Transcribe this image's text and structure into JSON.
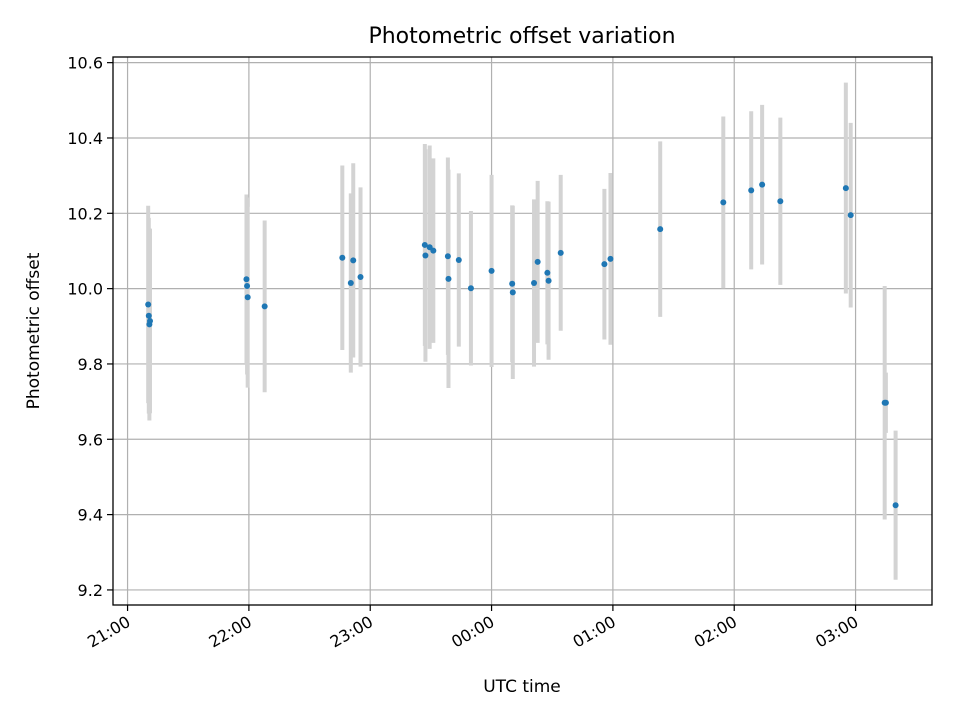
{
  "chart_data": {
    "type": "scatter",
    "title": "Photometric offset variation",
    "xlabel": "UTC time",
    "ylabel": "Photometric offset",
    "x_unit": "UTC clock time (hours, times after midnight expressed as 24+)",
    "xlim": [
      20.88,
      27.63
    ],
    "ylim": [
      9.16,
      10.615
    ],
    "grid": true,
    "x_ticks": [
      {
        "value": 21,
        "label": "21:00"
      },
      {
        "value": 22,
        "label": "22:00"
      },
      {
        "value": 23,
        "label": "23:00"
      },
      {
        "value": 24,
        "label": "00:00"
      },
      {
        "value": 25,
        "label": "01:00"
      },
      {
        "value": 26,
        "label": "02:00"
      },
      {
        "value": 27,
        "label": "03:00"
      }
    ],
    "y_ticks": [
      {
        "value": 9.2,
        "label": "9.2"
      },
      {
        "value": 9.4,
        "label": "9.4"
      },
      {
        "value": 9.6,
        "label": "9.6"
      },
      {
        "value": 9.8,
        "label": "9.8"
      },
      {
        "value": 10.0,
        "label": "10.0"
      },
      {
        "value": 10.2,
        "label": "10.2"
      },
      {
        "value": 10.4,
        "label": "10.4"
      },
      {
        "value": 10.6,
        "label": "10.6"
      }
    ],
    "colors": {
      "marker": "#1f77b4",
      "errorbar": "#d3d3d3",
      "grid": "#b0b0b0"
    },
    "points": [
      {
        "x": 21.17,
        "y": 9.958,
        "err": 0.262
      },
      {
        "x": 21.175,
        "y": 9.928,
        "err": 0.26
      },
      {
        "x": 21.18,
        "y": 9.905,
        "err": 0.255
      },
      {
        "x": 21.185,
        "y": 9.914,
        "err": 0.245
      },
      {
        "x": 21.98,
        "y": 10.025,
        "err": 0.225
      },
      {
        "x": 21.985,
        "y": 10.007,
        "err": 0.235
      },
      {
        "x": 21.99,
        "y": 9.977,
        "err": 0.24
      },
      {
        "x": 22.13,
        "y": 9.953,
        "err": 0.228
      },
      {
        "x": 22.77,
        "y": 10.082,
        "err": 0.245
      },
      {
        "x": 22.84,
        "y": 10.015,
        "err": 0.238
      },
      {
        "x": 22.86,
        "y": 10.075,
        "err": 0.258
      },
      {
        "x": 22.92,
        "y": 10.031,
        "err": 0.238
      },
      {
        "x": 23.45,
        "y": 10.116,
        "err": 0.268
      },
      {
        "x": 23.455,
        "y": 10.088,
        "err": 0.282
      },
      {
        "x": 23.49,
        "y": 10.11,
        "err": 0.27
      },
      {
        "x": 23.52,
        "y": 10.101,
        "err": 0.245
      },
      {
        "x": 23.64,
        "y": 10.086,
        "err": 0.262
      },
      {
        "x": 23.645,
        "y": 10.026,
        "err": 0.29
      },
      {
        "x": 23.73,
        "y": 10.076,
        "err": 0.23
      },
      {
        "x": 23.83,
        "y": 10.001,
        "err": 0.205
      },
      {
        "x": 24.0,
        "y": 10.047,
        "err": 0.255
      },
      {
        "x": 24.17,
        "y": 10.013,
        "err": 0.208
      },
      {
        "x": 24.175,
        "y": 9.99,
        "err": 0.23
      },
      {
        "x": 24.35,
        "y": 10.015,
        "err": 0.222
      },
      {
        "x": 24.38,
        "y": 10.071,
        "err": 0.215
      },
      {
        "x": 24.46,
        "y": 10.042,
        "err": 0.19
      },
      {
        "x": 24.47,
        "y": 10.021,
        "err": 0.21
      },
      {
        "x": 24.57,
        "y": 10.095,
        "err": 0.207
      },
      {
        "x": 24.93,
        "y": 10.065,
        "err": 0.2
      },
      {
        "x": 24.98,
        "y": 10.079,
        "err": 0.228
      },
      {
        "x": 25.39,
        "y": 10.158,
        "err": 0.233
      },
      {
        "x": 25.91,
        "y": 10.229,
        "err": 0.228
      },
      {
        "x": 26.14,
        "y": 10.261,
        "err": 0.21
      },
      {
        "x": 26.23,
        "y": 10.276,
        "err": 0.212
      },
      {
        "x": 26.38,
        "y": 10.232,
        "err": 0.222
      },
      {
        "x": 26.92,
        "y": 10.267,
        "err": 0.28
      },
      {
        "x": 26.96,
        "y": 10.195,
        "err": 0.245
      },
      {
        "x": 27.24,
        "y": 9.697,
        "err": 0.31
      },
      {
        "x": 27.25,
        "y": 9.697,
        "err": 0.08
      },
      {
        "x": 27.33,
        "y": 9.425,
        "err": 0.198
      }
    ]
  }
}
